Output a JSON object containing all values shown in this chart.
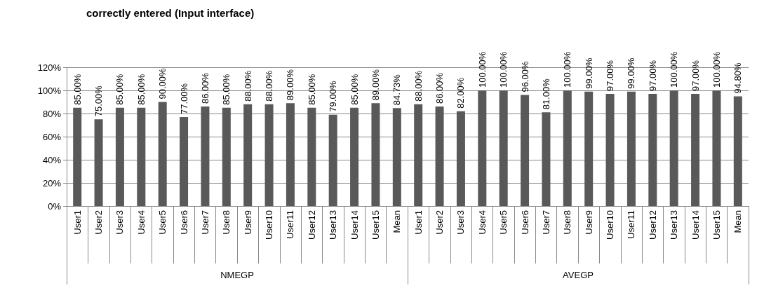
{
  "chart_data": {
    "type": "bar",
    "title": "correctly entered (Input interface)",
    "categories": [
      "User1",
      "User2",
      "User3",
      "User4",
      "User5",
      "User6",
      "User7",
      "User8",
      "User9",
      "User10",
      "User11",
      "User12",
      "User13",
      "User14",
      "User15",
      "Mean",
      "User1",
      "User2",
      "User3",
      "User4",
      "User5",
      "User6",
      "User7",
      "User8",
      "User9",
      "User10",
      "User11",
      "User12",
      "User13",
      "User14",
      "User15",
      "Mean"
    ],
    "values": [
      85,
      75,
      85,
      85,
      90,
      77,
      86,
      85,
      88,
      88,
      89,
      85,
      79,
      85,
      89,
      84.73,
      88,
      86,
      82,
      100,
      100,
      96,
      81,
      100,
      99,
      97,
      99,
      97,
      100,
      97,
      100,
      94.8
    ],
    "value_labels": [
      "85.00%",
      "75.00%",
      "85.00%",
      "85.00%",
      "90.00%",
      "77.00%",
      "86.00%",
      "85.00%",
      "88.00%",
      "88.00%",
      "89.00%",
      "85.00%",
      "79.00%",
      "85.00%",
      "89.00%",
      "84.73%",
      "88.00%",
      "86.00%",
      "82.00%",
      "100.00%",
      "100.00%",
      "96.00%",
      "81.00%",
      "100.00%",
      "99.00%",
      "97.00%",
      "99.00%",
      "97.00%",
      "100.00%",
      "97.00%",
      "100.00%",
      "94.80%"
    ],
    "color": "#595959",
    "ylim": [
      0,
      120
    ],
    "yticks": [
      {
        "value": 0,
        "label": "0%"
      },
      {
        "value": 20,
        "label": "20%"
      },
      {
        "value": 40,
        "label": "40%"
      },
      {
        "value": 60,
        "label": "60%"
      },
      {
        "value": 80,
        "label": "80%"
      },
      {
        "value": 100,
        "label": "100%"
      },
      {
        "value": 120,
        "label": "120%"
      }
    ],
    "grid": "y",
    "annotations": [
      "NMEGP",
      "AVEGP"
    ]
  }
}
